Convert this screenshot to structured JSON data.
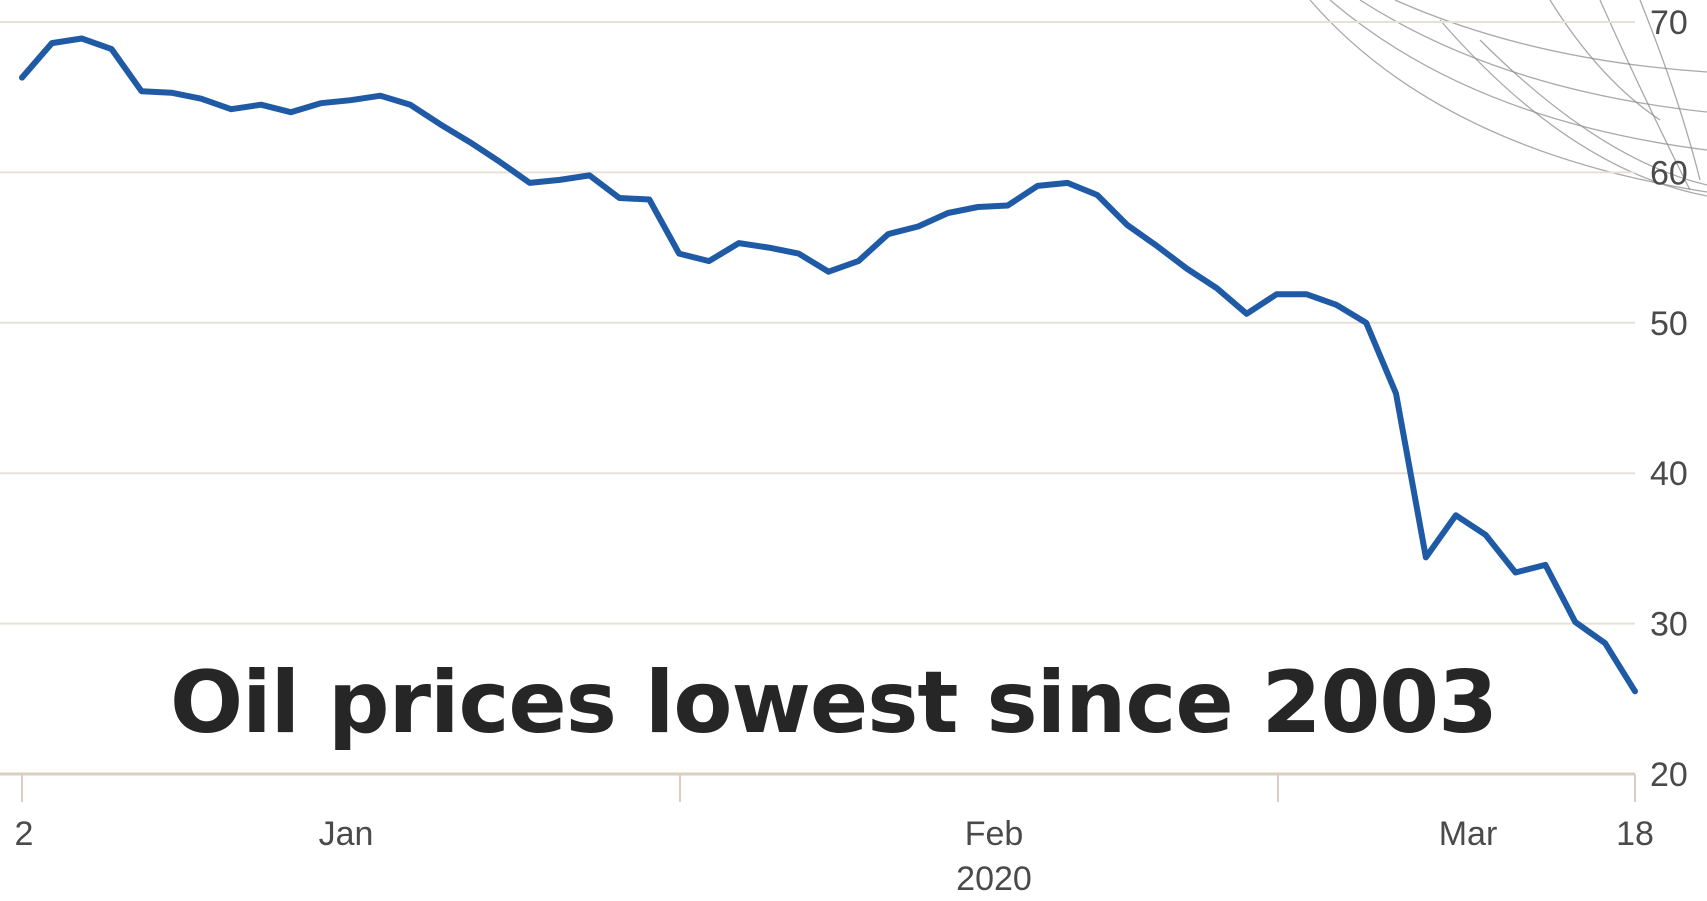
{
  "headline": "Oil prices lowest since 2003",
  "colors": {
    "line": "#1f5aa6",
    "grid": "#e8e0d6",
    "axis": "#d8cec2",
    "text": "#4a4a4a",
    "headline": "#262626",
    "decoration": "#8c8c8c"
  },
  "chart_data": {
    "type": "line",
    "title": "",
    "xlabel": "2020",
    "ylabel": "",
    "ylim": [
      20,
      70
    ],
    "yticks": [
      20,
      30,
      40,
      50,
      60,
      70
    ],
    "grid": true,
    "legend": "none",
    "x_tick_labels": [
      "2",
      "Jan",
      "Feb",
      "Mar",
      "18"
    ],
    "series": [
      {
        "values": [
          66.3,
          68.6,
          68.9,
          68.2,
          65.4,
          65.3,
          64.9,
          64.2,
          64.5,
          64.0,
          64.6,
          64.8,
          65.1,
          64.5,
          63.2,
          62.0,
          60.7,
          59.3,
          59.5,
          59.8,
          58.3,
          58.2,
          54.6,
          54.1,
          55.3,
          55.0,
          54.6,
          53.4,
          54.1,
          55.9,
          56.4,
          57.3,
          57.7,
          57.8,
          59.1,
          59.3,
          58.5,
          56.5,
          55.1,
          53.6,
          52.3,
          50.6,
          51.9,
          51.9,
          51.2,
          50.0,
          45.3,
          34.4,
          37.2,
          35.9,
          33.4,
          33.9,
          30.1,
          28.7,
          25.5
        ]
      }
    ]
  }
}
